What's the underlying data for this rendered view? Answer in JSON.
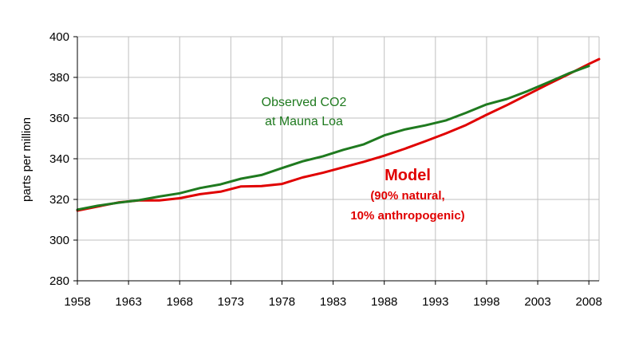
{
  "chart_data": {
    "type": "line",
    "title": "",
    "xlabel": "",
    "ylabel": "parts per million",
    "xlim": [
      1958,
      2009
    ],
    "ylim": [
      280,
      400
    ],
    "x_ticks": [
      "1958",
      "1963",
      "1968",
      "1973",
      "1978",
      "1983",
      "1988",
      "1993",
      "1998",
      "2003",
      "2008"
    ],
    "y_ticks": [
      "280",
      "300",
      "320",
      "340",
      "360",
      "380",
      "400"
    ],
    "grid": true,
    "series": [
      {
        "name": "Observed CO2 at Mauna Loa",
        "color": "#1f7a1f",
        "x": [
          1958,
          1960,
          1962,
          1964,
          1966,
          1968,
          1970,
          1972,
          1974,
          1976,
          1978,
          1980,
          1982,
          1984,
          1986,
          1988,
          1990,
          1992,
          1994,
          1996,
          1998,
          2000,
          2002,
          2004,
          2006,
          2008
        ],
        "values": [
          315.0,
          316.9,
          318.4,
          319.6,
          321.4,
          323.0,
          325.6,
          327.4,
          330.2,
          332.0,
          335.4,
          338.7,
          341.2,
          344.4,
          347.1,
          351.5,
          354.4,
          356.4,
          358.8,
          362.6,
          366.7,
          369.4,
          373.2,
          377.5,
          381.9,
          385.6
        ]
      },
      {
        "name": "Model (90% natural, 10% anthropogenic)",
        "color": "#e00000",
        "x": [
          1958,
          1960,
          1962,
          1964,
          1966,
          1968,
          1970,
          1972,
          1974,
          1976,
          1978,
          1980,
          1982,
          1984,
          1986,
          1988,
          1990,
          1992,
          1994,
          1996,
          1998,
          2000,
          2002,
          2004,
          2006,
          2008,
          2009
        ],
        "values": [
          314.5,
          316.5,
          318.5,
          319.5,
          319.5,
          320.6,
          322.6,
          323.8,
          326.4,
          326.6,
          327.6,
          330.8,
          333.1,
          335.8,
          338.5,
          341.5,
          344.9,
          348.6,
          352.4,
          356.6,
          361.6,
          366.4,
          371.5,
          376.6,
          381.5,
          386.6,
          389.0
        ]
      }
    ],
    "annotations": {
      "observed_line1": "Observed CO2",
      "observed_line2": "at Mauna Loa",
      "model_title": "Model",
      "model_line1": "(90% natural,",
      "model_line2": "10% anthropogenic)"
    },
    "colors": {
      "observed": "#1f7a1f",
      "model": "#e00000",
      "grid": "#bfbfbf"
    }
  }
}
